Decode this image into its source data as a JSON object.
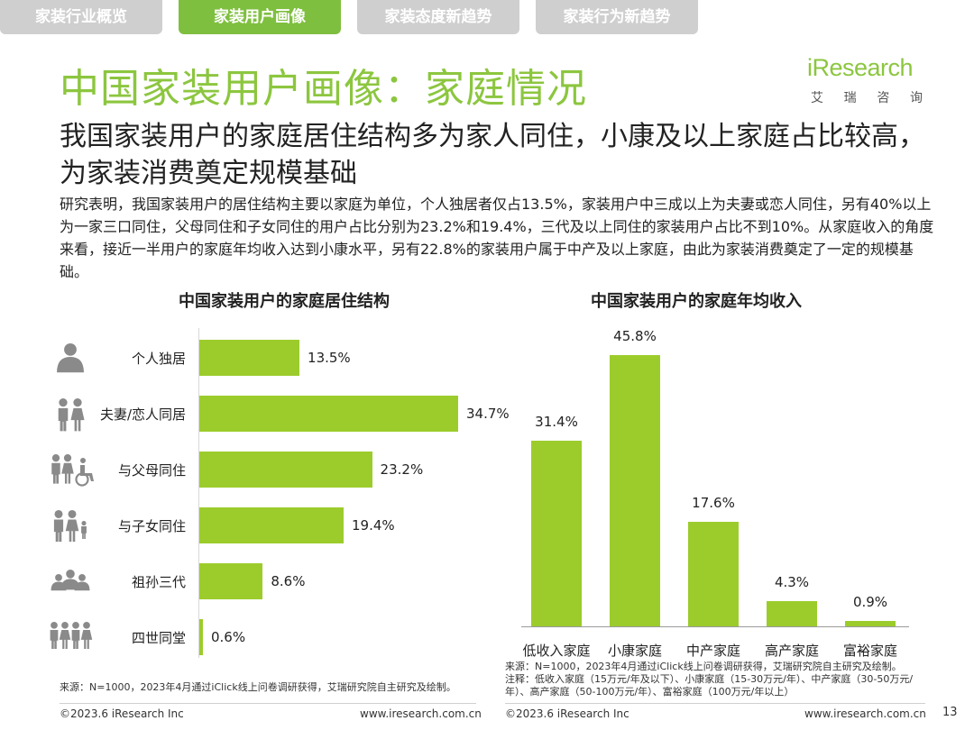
{
  "tabs": [
    "家装行业概览",
    "家装用户画像",
    "家装态度新趋势",
    "家装行为新趋势"
  ],
  "active_tab": 1,
  "title": "中国家装用户画像：家庭情况",
  "logo": {
    "word": "iResearch",
    "chinese": [
      "艾",
      "瑞",
      "咨",
      "询"
    ]
  },
  "subtitle": "我国家装用户的家庭居住结构多为家人同住，小康及以上家庭占比较高，为家装消费奠定规模基础",
  "body": "研究表明，我国家装用户的居住结构主要以家庭为单位，个人独居者仅占13.5%，家装用户中三成以上为夫妻或恋人同住，另有40%以上为一家三口同住，父母同住和子女同住的用户占比分别为23.2%和19.4%，三代及以上同住的家装用户占比不到10%。从家庭收入的角度来看，接近一半用户的家庭年均收入达到小康水平，另有22.8%的家装用户属于中产及以上家庭，由此为家装消费奠定了一定的规模基础。",
  "chart_data": [
    {
      "type": "bar",
      "orientation": "horizontal",
      "title": "中国家装用户的家庭居住结构",
      "categories": [
        "个人独居",
        "夫妻/恋人同居",
        "与父母同住",
        "与子女同住",
        "祖孙三代",
        "四世同堂"
      ],
      "values": [
        13.5,
        34.7,
        23.2,
        19.4,
        8.6,
        0.6
      ],
      "value_labels": [
        "13.5%",
        "34.7%",
        "23.2%",
        "19.4%",
        "8.6%",
        "0.6%"
      ],
      "icons": [
        "single-person-icon",
        "couple-icon",
        "family-with-parents-icon",
        "family-with-children-icon",
        "three-generations-icon",
        "four-generations-icon"
      ],
      "unit": "%",
      "color": "#9ccc2c"
    },
    {
      "type": "bar",
      "orientation": "vertical",
      "title": "中国家装用户的家庭年均收入",
      "categories": [
        "低收入家庭",
        "小康家庭",
        "中产家庭",
        "高产家庭",
        "富裕家庭"
      ],
      "values": [
        31.4,
        45.8,
        17.6,
        4.3,
        0.9
      ],
      "value_labels": [
        "31.4%",
        "45.8%",
        "17.6%",
        "4.3%",
        "0.9%"
      ],
      "unit": "%",
      "color": "#9ccc2c"
    }
  ],
  "source_left": "来源：N=1000，2023年4月通过iClick线上问卷调研获得，艾瑞研究院自主研究及绘制。",
  "source_right": "来源：N=1000，2023年4月通过iClick线上问卷调研获得，艾瑞研究院自主研究及绘制。\n注释：低收入家庭（15万元/年及以下）、小康家庭（15-30万元/年）、中产家庭（30-50万元/年）、高产家庭（50-100万元/年）、富裕家庭（100万元/年以上）",
  "footer": {
    "left_copyright": "©2023.6 iResearch Inc",
    "left_url": "www.iresearch.com.cn",
    "right_copyright": "©2023.6 iResearch Inc",
    "right_url": "www.iresearch.com.cn",
    "page": "13"
  },
  "colors": {
    "accent": "#8cc63f",
    "bar": "#9ccc2c",
    "tab_active": "#7fbf3f",
    "tab_inactive": "#cfcfcf"
  }
}
